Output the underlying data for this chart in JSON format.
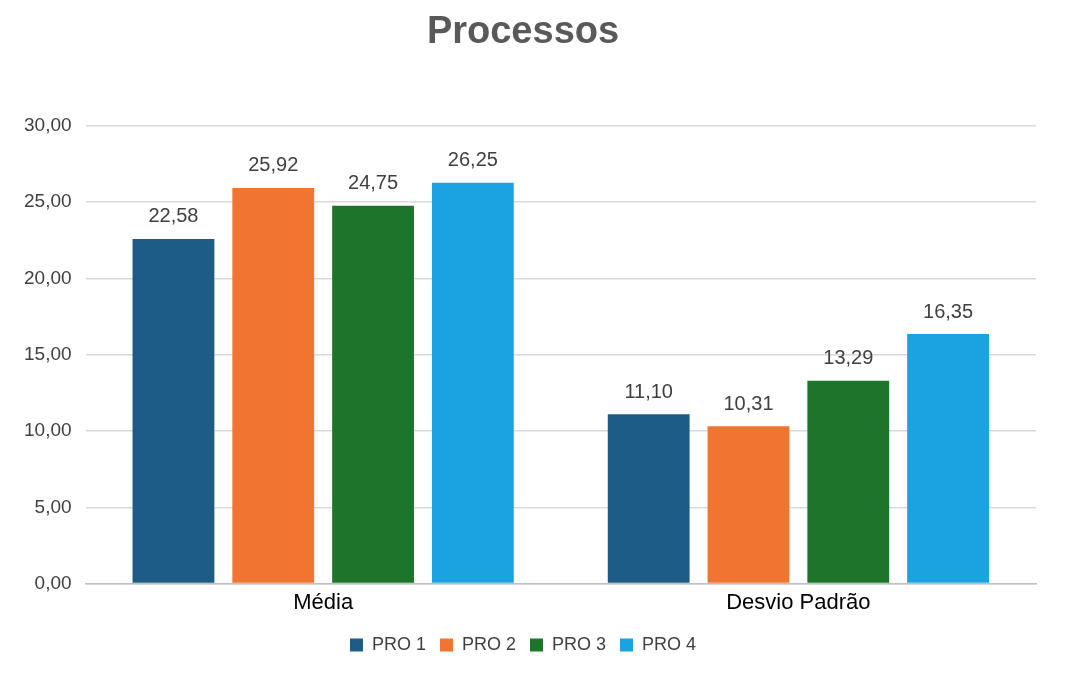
{
  "chart_data": {
    "type": "bar",
    "title": "Processos",
    "categories": [
      "Média",
      "Desvio Padrão"
    ],
    "series": [
      {
        "name": "PRO 1",
        "color": "#1d5d85",
        "values": [
          22.58,
          11.1
        ],
        "value_labels": [
          "22,58",
          "11,10"
        ]
      },
      {
        "name": "PRO 2",
        "color": "#ef7530",
        "values": [
          25.92,
          10.31
        ],
        "value_labels": [
          "25,92",
          "10,31"
        ]
      },
      {
        "name": "PRO 3",
        "color": "#1e752a",
        "values": [
          24.75,
          13.29
        ],
        "value_labels": [
          "24,75",
          "13,29"
        ]
      },
      {
        "name": "PRO 4",
        "color": "#1aa3e0",
        "values": [
          26.25,
          16.35
        ],
        "value_labels": [
          "26,25",
          "16,35"
        ]
      }
    ],
    "ylim": [
      0,
      30
    ],
    "yticks": [
      {
        "value": 0,
        "label": "0,00"
      },
      {
        "value": 5,
        "label": "5,00"
      },
      {
        "value": 10,
        "label": "10,00"
      },
      {
        "value": 15,
        "label": "15,00"
      },
      {
        "value": 20,
        "label": "20,00"
      },
      {
        "value": 25,
        "label": "25,00"
      },
      {
        "value": 30,
        "label": "30,00"
      }
    ],
    "grid": "y",
    "legend": "bottom"
  }
}
